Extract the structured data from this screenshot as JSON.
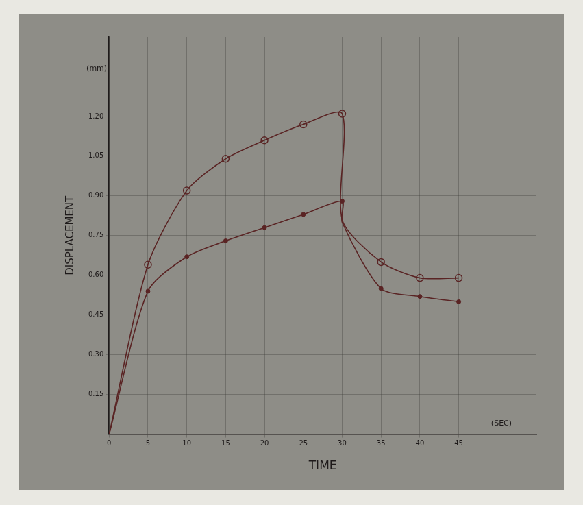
{
  "chart_data": {
    "type": "line",
    "x_label": "TIME",
    "y_label": "DISPLACEMENT",
    "annotations": [
      {
        "text": "(mm)",
        "x": -1.6,
        "y": 1.38
      },
      {
        "text": "(SEC)",
        "x": 50.5,
        "y": 0.04
      }
    ],
    "x": [
      0,
      5,
      10,
      15,
      20,
      25,
      30,
      30,
      35,
      40,
      45
    ],
    "series": [
      {
        "color": "#5a2424",
        "marker": "circle",
        "line_style": "solid",
        "values": [
          0,
          0.64,
          0.92,
          1.04,
          1.11,
          1.17,
          1.21,
          0.81,
          0.65,
          0.59,
          0.59
        ]
      },
      {
        "color": "#5a2424",
        "marker": "dot",
        "line_style": "solid",
        "values": [
          0,
          0.54,
          0.67,
          0.73,
          0.78,
          0.83,
          0.88,
          0.8,
          0.55,
          0.52,
          0.5
        ]
      }
    ],
    "xlim": [
      0,
      55
    ],
    "xticks": [
      0,
      5,
      10,
      15,
      20,
      25,
      30,
      35,
      40,
      45
    ],
    "ylim": [
      0,
      1.5
    ],
    "yticks": [
      0.15,
      {
        "value": 0.3,
        "label": "0.30"
      },
      0.45,
      {
        "value": 0.6,
        "label": "0.60"
      },
      0.75,
      {
        "value": 0.9,
        "label": "0.90"
      },
      1.05,
      {
        "value": 1.2,
        "label": "1.20"
      }
    ],
    "grid": true
  }
}
